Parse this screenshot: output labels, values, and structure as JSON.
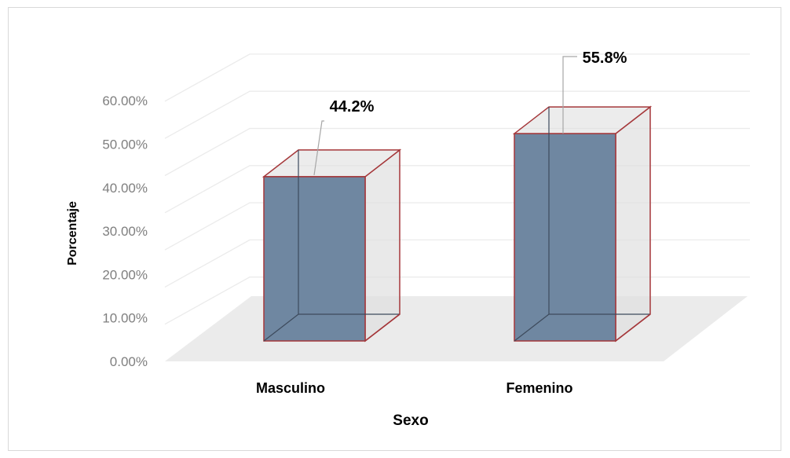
{
  "chart_data": {
    "type": "bar",
    "title": "",
    "xlabel": "Sexo",
    "ylabel": "Porcentaje",
    "categories": [
      "Masculino",
      "Femenino"
    ],
    "values": [
      44.2,
      55.8
    ],
    "data_labels": [
      "44.2%",
      "55.8%"
    ],
    "ylim": [
      0,
      60
    ],
    "yticks": [
      "0.00%",
      "10.00%",
      "20.00%",
      "30.00%",
      "40.00%",
      "50.00%",
      "60.00%"
    ],
    "grid": true,
    "legend": "none",
    "style": "3d-column",
    "colors": {
      "bar_front": "#6f87a1",
      "bar_edge": "#a5373a",
      "bar_side": "#e0e0e0",
      "floor": "#ebebeb",
      "grid": "#ebebeb",
      "tick_text": "#7f7f7f"
    }
  }
}
